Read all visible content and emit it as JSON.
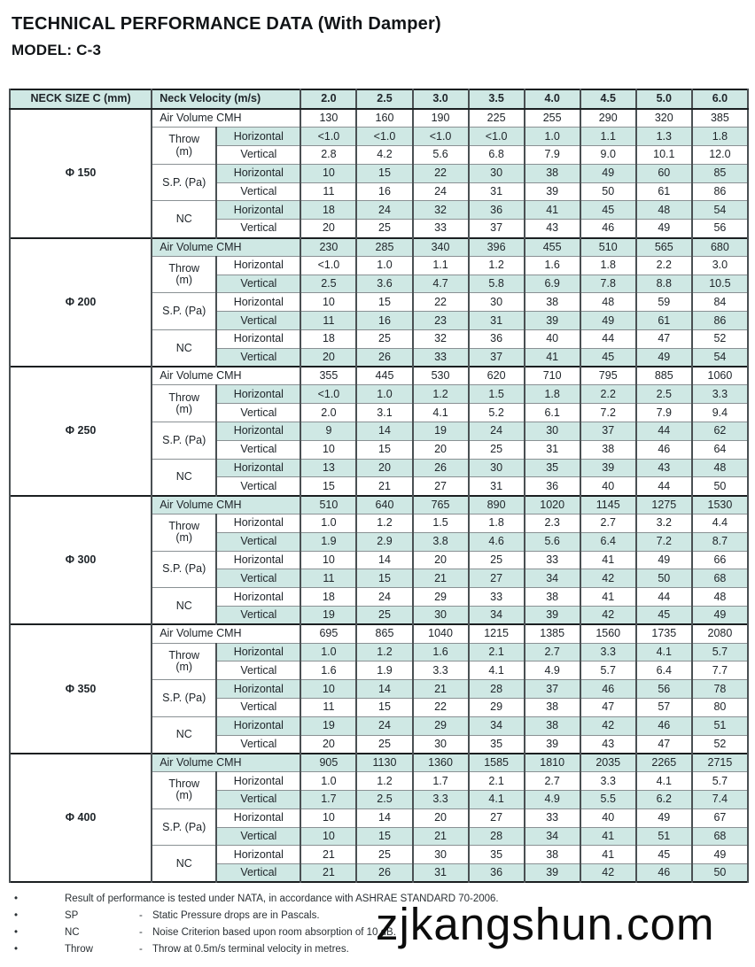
{
  "page": {
    "title": "TECHNICAL PERFORMANCE DATA (With Damper)",
    "model": "MODEL: C-3"
  },
  "colors": {
    "row_shade": "#cfe8e4",
    "border_dark": "#1b1f21",
    "text": "#20262b"
  },
  "table": {
    "corner_header": "NECK SIZE C (mm)",
    "velocity_header": "Neck Velocity (m/s)",
    "velocities": [
      "2.0",
      "2.5",
      "3.0",
      "3.5",
      "4.0",
      "4.5",
      "5.0",
      "6.0"
    ],
    "row_labels": {
      "air_volume": "Air Volume CMH",
      "throw_label": "Throw\n(m)",
      "sp_label": "S.P. (Pa)",
      "nc_label": "NC",
      "horizontal_label": "Horizontal",
      "vertical_label": "Vertical"
    },
    "sections": [
      {
        "size": "Φ 150",
        "rows": {
          "air_volume": [
            "130",
            "160",
            "190",
            "225",
            "255",
            "290",
            "320",
            "385"
          ],
          "throw_horizontal": [
            "<1.0",
            "<1.0",
            "<1.0",
            "<1.0",
            "1.0",
            "1.1",
            "1.3",
            "1.8"
          ],
          "throw_vertical": [
            "2.8",
            "4.2",
            "5.6",
            "6.8",
            "7.9",
            "9.0",
            "10.1",
            "12.0"
          ],
          "sp_horizontal": [
            "10",
            "15",
            "22",
            "30",
            "38",
            "49",
            "60",
            "85"
          ],
          "sp_vertical": [
            "11",
            "16",
            "24",
            "31",
            "39",
            "50",
            "61",
            "86"
          ],
          "nc_horizontal": [
            "18",
            "24",
            "32",
            "36",
            "41",
            "45",
            "48",
            "54"
          ],
          "nc_vertical": [
            "20",
            "25",
            "33",
            "37",
            "43",
            "46",
            "49",
            "56"
          ]
        }
      },
      {
        "size": "Φ 200",
        "rows": {
          "air_volume": [
            "230",
            "285",
            "340",
            "396",
            "455",
            "510",
            "565",
            "680"
          ],
          "throw_horizontal": [
            "<1.0",
            "1.0",
            "1.1",
            "1.2",
            "1.6",
            "1.8",
            "2.2",
            "3.0"
          ],
          "throw_vertical": [
            "2.5",
            "3.6",
            "4.7",
            "5.8",
            "6.9",
            "7.8",
            "8.8",
            "10.5"
          ],
          "sp_horizontal": [
            "10",
            "15",
            "22",
            "30",
            "38",
            "48",
            "59",
            "84"
          ],
          "sp_vertical": [
            "11",
            "16",
            "23",
            "31",
            "39",
            "49",
            "61",
            "86"
          ],
          "nc_horizontal": [
            "18",
            "25",
            "32",
            "36",
            "40",
            "44",
            "47",
            "52"
          ],
          "nc_vertical": [
            "20",
            "26",
            "33",
            "37",
            "41",
            "45",
            "49",
            "54"
          ]
        }
      },
      {
        "size": "Φ 250",
        "rows": {
          "air_volume": [
            "355",
            "445",
            "530",
            "620",
            "710",
            "795",
            "885",
            "1060"
          ],
          "throw_horizontal": [
            "<1.0",
            "1.0",
            "1.2",
            "1.5",
            "1.8",
            "2.2",
            "2.5",
            "3.3"
          ],
          "throw_vertical": [
            "2.0",
            "3.1",
            "4.1",
            "5.2",
            "6.1",
            "7.2",
            "7.9",
            "9.4"
          ],
          "sp_horizontal": [
            "9",
            "14",
            "19",
            "24",
            "30",
            "37",
            "44",
            "62"
          ],
          "sp_vertical": [
            "10",
            "15",
            "20",
            "25",
            "31",
            "38",
            "46",
            "64"
          ],
          "nc_horizontal": [
            "13",
            "20",
            "26",
            "30",
            "35",
            "39",
            "43",
            "48"
          ],
          "nc_vertical": [
            "15",
            "21",
            "27",
            "31",
            "36",
            "40",
            "44",
            "50"
          ]
        }
      },
      {
        "size": "Φ 300",
        "rows": {
          "air_volume": [
            "510",
            "640",
            "765",
            "890",
            "1020",
            "1145",
            "1275",
            "1530"
          ],
          "throw_horizontal": [
            "1.0",
            "1.2",
            "1.5",
            "1.8",
            "2.3",
            "2.7",
            "3.2",
            "4.4"
          ],
          "throw_vertical": [
            "1.9",
            "2.9",
            "3.8",
            "4.6",
            "5.6",
            "6.4",
            "7.2",
            "8.7"
          ],
          "sp_horizontal": [
            "10",
            "14",
            "20",
            "25",
            "33",
            "41",
            "49",
            "66"
          ],
          "sp_vertical": [
            "11",
            "15",
            "21",
            "27",
            "34",
            "42",
            "50",
            "68"
          ],
          "nc_horizontal": [
            "18",
            "24",
            "29",
            "33",
            "38",
            "41",
            "44",
            "48"
          ],
          "nc_vertical": [
            "19",
            "25",
            "30",
            "34",
            "39",
            "42",
            "45",
            "49"
          ]
        }
      },
      {
        "size": "Φ 350",
        "rows": {
          "air_volume": [
            "695",
            "865",
            "1040",
            "1215",
            "1385",
            "1560",
            "1735",
            "2080"
          ],
          "throw_horizontal": [
            "1.0",
            "1.2",
            "1.6",
            "2.1",
            "2.7",
            "3.3",
            "4.1",
            "5.7"
          ],
          "throw_vertical": [
            "1.6",
            "1.9",
            "3.3",
            "4.1",
            "4.9",
            "5.7",
            "6.4",
            "7.7"
          ],
          "sp_horizontal": [
            "10",
            "14",
            "21",
            "28",
            "37",
            "46",
            "56",
            "78"
          ],
          "sp_vertical": [
            "11",
            "15",
            "22",
            "29",
            "38",
            "47",
            "57",
            "80"
          ],
          "nc_horizontal": [
            "19",
            "24",
            "29",
            "34",
            "38",
            "42",
            "46",
            "51"
          ],
          "nc_vertical": [
            "20",
            "25",
            "30",
            "35",
            "39",
            "43",
            "47",
            "52"
          ]
        }
      },
      {
        "size": "Φ 400",
        "rows": {
          "air_volume": [
            "905",
            "1130",
            "1360",
            "1585",
            "1810",
            "2035",
            "2265",
            "2715"
          ],
          "throw_horizontal": [
            "1.0",
            "1.2",
            "1.7",
            "2.1",
            "2.7",
            "3.3",
            "4.1",
            "5.7"
          ],
          "throw_vertical": [
            "1.7",
            "2.5",
            "3.3",
            "4.1",
            "4.9",
            "5.5",
            "6.2",
            "7.4"
          ],
          "sp_horizontal": [
            "10",
            "14",
            "20",
            "27",
            "33",
            "40",
            "49",
            "67"
          ],
          "sp_vertical": [
            "10",
            "15",
            "21",
            "28",
            "34",
            "41",
            "51",
            "68"
          ],
          "nc_horizontal": [
            "21",
            "25",
            "30",
            "35",
            "38",
            "41",
            "45",
            "49"
          ],
          "nc_vertical": [
            "21",
            "26",
            "31",
            "36",
            "39",
            "42",
            "46",
            "50"
          ]
        }
      }
    ]
  },
  "notes": {
    "bullet": "•",
    "lines": [
      {
        "term": "",
        "sep": "",
        "text": "Result of performance is tested under NATA, in accordance with ASHRAE STANDARD 70-2006."
      },
      {
        "term": "SP",
        "sep": "-",
        "text": "Static Pressure drops are in Pascals."
      },
      {
        "term": "NC",
        "sep": "-",
        "text": "Noise Criterion based upon room absorption of 10 dB."
      },
      {
        "term": "Throw",
        "sep": "-",
        "text": "Throw at 0.5m/s terminal velocity in metres."
      }
    ]
  },
  "watermark": "zjkangshun.com"
}
